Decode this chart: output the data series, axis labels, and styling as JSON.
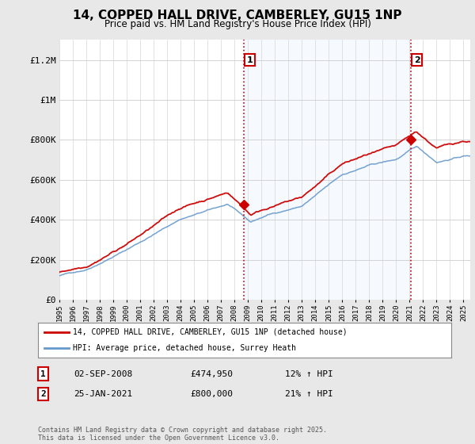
{
  "title": "14, COPPED HALL DRIVE, CAMBERLEY, GU15 1NP",
  "subtitle": "Price paid vs. HM Land Registry's House Price Index (HPI)",
  "legend_line1": "14, COPPED HALL DRIVE, CAMBERLEY, GU15 1NP (detached house)",
  "legend_line2": "HPI: Average price, detached house, Surrey Heath",
  "annotation1_label": "1",
  "annotation1_date": "02-SEP-2008",
  "annotation1_price": "£474,950",
  "annotation1_hpi": "12% ↑ HPI",
  "annotation2_label": "2",
  "annotation2_date": "25-JAN-2021",
  "annotation2_price": "£800,000",
  "annotation2_hpi": "21% ↑ HPI",
  "footer": "Contains HM Land Registry data © Crown copyright and database right 2025.\nThis data is licensed under the Open Government Licence v3.0.",
  "ylim": [
    0,
    1300000
  ],
  "yticks": [
    0,
    200000,
    400000,
    600000,
    800000,
    1000000,
    1200000
  ],
  "ytick_labels": [
    "£0",
    "£200K",
    "£400K",
    "£600K",
    "£800K",
    "£1M",
    "£1.2M"
  ],
  "bg_color": "#e8e8e8",
  "plot_bg_color": "#ffffff",
  "shade_color": "#ddeeff",
  "red_color": "#cc0000",
  "blue_color": "#6699cc",
  "vline_color": "#cc0000",
  "point1_x": 2008.67,
  "point1_y": 474950,
  "point2_x": 2021.07,
  "point2_y": 800000,
  "xmin": 1995,
  "xmax": 2025.5,
  "noise_scale_hpi": 3500,
  "noise_scale_red": 6000
}
